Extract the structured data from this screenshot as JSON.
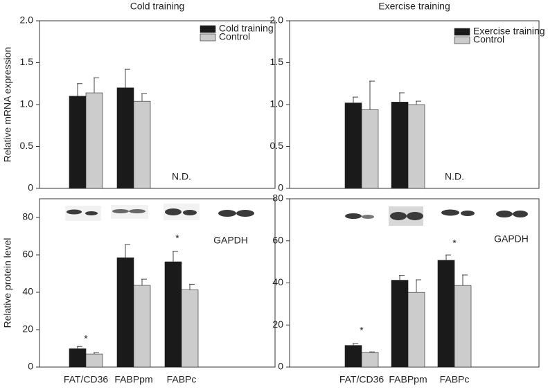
{
  "chart_data": [
    {
      "type": "bar",
      "title": "Cold training",
      "ylabel": "Relative mRNA expression",
      "categories": [
        null,
        null,
        null
      ],
      "series": [
        {
          "name": "Cold training",
          "color": "#1a1a1a",
          "values": [
            1.1,
            1.2,
            null
          ],
          "errors": [
            0.15,
            0.22,
            null
          ]
        },
        {
          "name": "Control",
          "color": "#cccccc",
          "values": [
            1.14,
            1.04,
            null
          ],
          "errors": [
            0.18,
            0.09,
            null
          ]
        }
      ],
      "ylim": [
        0,
        2
      ],
      "yticks": [
        0,
        0.5,
        {
          "value": 1,
          "label": "1.0"
        },
        1.5,
        {
          "value": 2,
          "label": "2.0"
        }
      ],
      "annotations": [
        "N.D."
      ],
      "legend": "upper right"
    },
    {
      "type": "bar",
      "title": "Exercise training",
      "categories": [
        null,
        null,
        null
      ],
      "series": [
        {
          "name": "Exercise training",
          "color": "#1a1a1a",
          "values": [
            1.02,
            1.03,
            null
          ],
          "errors": [
            0.07,
            0.11,
            null
          ]
        },
        {
          "name": "Control",
          "color": "#cccccc",
          "values": [
            0.94,
            1.0,
            null
          ],
          "errors": [
            0.34,
            0.04,
            null
          ]
        }
      ],
      "ylim": [
        0,
        2
      ],
      "yticks": [
        0,
        0.5,
        {
          "value": 1,
          "label": "1.0"
        },
        1.5,
        {
          "value": 2,
          "label": "2.0"
        }
      ],
      "annotations": [
        "N.D."
      ],
      "legend": "upper right"
    },
    {
      "type": "bar",
      "ylabel": "Relative protein level",
      "categories": [
        "FAT/CD36",
        "FABPpm",
        "FABPc"
      ],
      "series": [
        {
          "color": "#1a1a1a",
          "values": [
            9.8,
            58.5,
            56.3
          ],
          "errors": [
            1.2,
            7.0,
            5.5
          ]
        },
        {
          "color": "#cccccc",
          "values": [
            7.0,
            43.7,
            41.3
          ],
          "errors": [
            0.8,
            3.3,
            3.0
          ]
        }
      ],
      "ylim": [
        0,
        90
      ],
      "yticks": [
        0,
        20,
        40,
        60,
        80
      ],
      "annotations": [
        "*",
        "*",
        "GAPDH"
      ]
    },
    {
      "type": "bar",
      "categories": [
        "FAT/CD36",
        "FABPpm",
        "FABPc"
      ],
      "series": [
        {
          "color": "#1a1a1a",
          "values": [
            10.3,
            41.3,
            50.8
          ],
          "errors": [
            0.9,
            2.3,
            2.5
          ]
        },
        {
          "color": "#cccccc",
          "values": [
            7.0,
            35.5,
            38.8
          ],
          "errors": [
            0.2,
            6.0,
            5.0
          ]
        }
      ],
      "ylim": [
        0,
        80
      ],
      "yticks": [
        0,
        20,
        40,
        60,
        80
      ],
      "annotations": [
        "*",
        "*",
        "GAPDH"
      ]
    }
  ]
}
